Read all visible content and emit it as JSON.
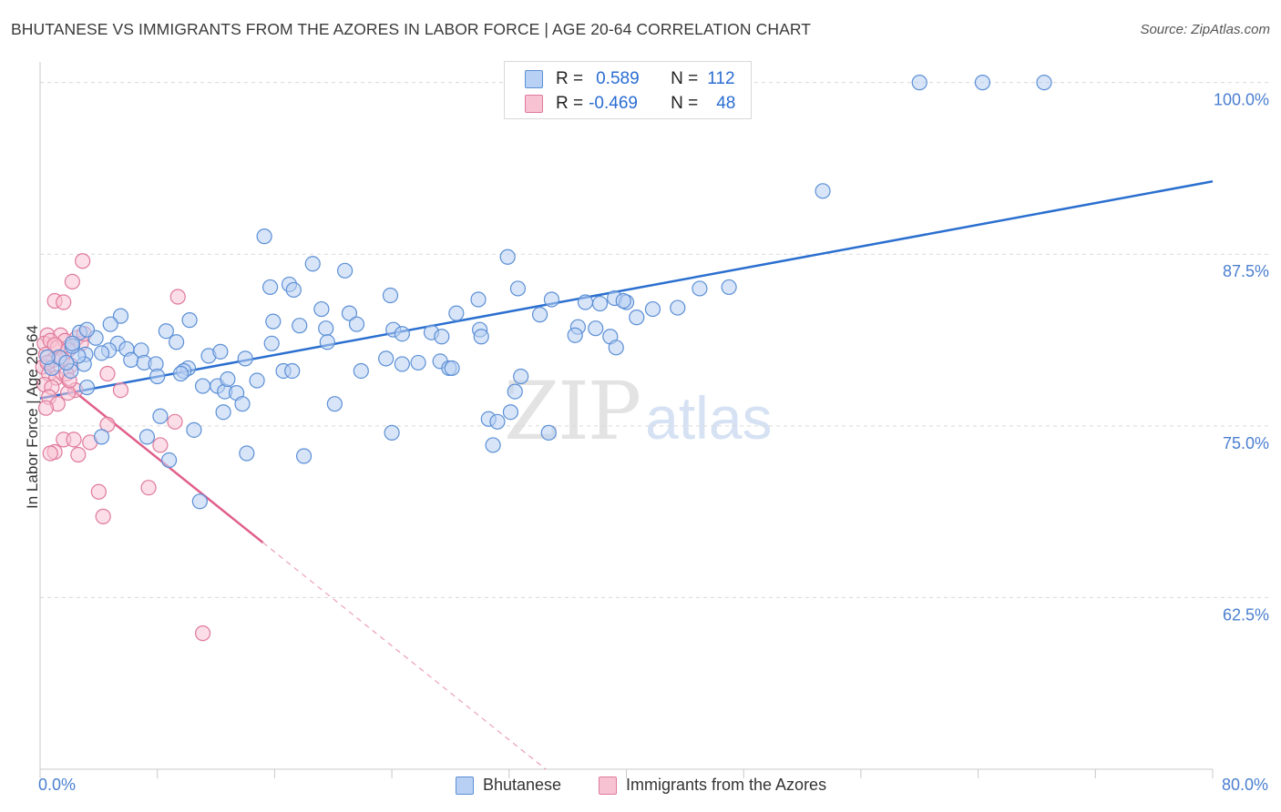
{
  "header": {
    "title": "BHUTANESE VS IMMIGRANTS FROM THE AZORES IN LABOR FORCE | AGE 20-64 CORRELATION CHART",
    "source": "Source: ZipAtlas.com"
  },
  "stats": {
    "series_a": {
      "r_label": "R =",
      "r_value": "0.589",
      "n_label": "N =",
      "n_value": "112"
    },
    "series_b": {
      "r_label": "R =",
      "r_value": "-0.469",
      "n_label": "N =",
      "n_value": "48"
    }
  },
  "watermark": {
    "zip": "ZIP",
    "atlas": "atlas"
  },
  "colors": {
    "blue_fill": "#b8d0f3",
    "blue_stroke": "#5b8fd6",
    "blue_line": "#2a6fcf",
    "pink_fill": "#f7c3d3",
    "pink_stroke": "#e0799b",
    "pink_line": "#e0608a",
    "grid": "#d9d9d9",
    "tick_label": "#4a7fd0"
  },
  "chart_data": {
    "type": "scatter",
    "title": "BHUTANESE VS IMMIGRANTS FROM THE AZORES IN LABOR FORCE | AGE 20-64 CORRELATION CHART",
    "xlabel": "",
    "ylabel": "In Labor Force | Age 20-64",
    "xlim": [
      0,
      80
    ],
    "ylim": [
      50,
      101.5
    ],
    "x_tick_labels": {
      "min": "0.0%",
      "max": "80.0%"
    },
    "y_ticks": [
      {
        "value": 100,
        "label": "100.0%"
      },
      {
        "value": 87.5,
        "label": "87.5%"
      },
      {
        "value": 75,
        "label": "75.0%"
      },
      {
        "value": 62.5,
        "label": "62.5%"
      }
    ],
    "grid": true,
    "legend_position": "bottom-center",
    "series": [
      {
        "name": "Bhutanese",
        "color": "blue",
        "trend": {
          "x": [
            0,
            80
          ],
          "y": [
            77.0,
            92.8
          ],
          "dashed_from": null
        },
        "points": [
          [
            60,
            100
          ],
          [
            64.3,
            100
          ],
          [
            68.5,
            100
          ],
          [
            53.4,
            92.1
          ],
          [
            15.3,
            88.8
          ],
          [
            18.6,
            86.8
          ],
          [
            20.8,
            86.3
          ],
          [
            31.9,
            87.3
          ],
          [
            15.7,
            85.1
          ],
          [
            17.0,
            85.3
          ],
          [
            17.3,
            84.9
          ],
          [
            23.9,
            84.5
          ],
          [
            29.9,
            84.2
          ],
          [
            32.6,
            85.0
          ],
          [
            34.9,
            84.2
          ],
          [
            37.2,
            84.0
          ],
          [
            38.2,
            83.9
          ],
          [
            39.2,
            84.3
          ],
          [
            40.0,
            84.0
          ],
          [
            39.8,
            84.1
          ],
          [
            45.0,
            85.0
          ],
          [
            47.0,
            85.1
          ],
          [
            41.8,
            83.5
          ],
          [
            43.5,
            83.6
          ],
          [
            40.7,
            82.9
          ],
          [
            34.1,
            83.1
          ],
          [
            28.4,
            83.2
          ],
          [
            19.2,
            83.5
          ],
          [
            5.5,
            83.0
          ],
          [
            4.8,
            82.4
          ],
          [
            10.2,
            82.7
          ],
          [
            8.6,
            81.9
          ],
          [
            15.9,
            82.6
          ],
          [
            17.7,
            82.3
          ],
          [
            19.5,
            82.1
          ],
          [
            21.1,
            83.2
          ],
          [
            21.6,
            82.4
          ],
          [
            24.1,
            82.0
          ],
          [
            24.7,
            81.7
          ],
          [
            26.7,
            81.8
          ],
          [
            27.4,
            81.5
          ],
          [
            30.0,
            82.0
          ],
          [
            36.7,
            82.2
          ],
          [
            37.9,
            82.1
          ],
          [
            38.9,
            81.5
          ],
          [
            39.3,
            80.7
          ],
          [
            19.6,
            81.1
          ],
          [
            15.8,
            81.0
          ],
          [
            9.3,
            81.1
          ],
          [
            11.5,
            80.1
          ],
          [
            12.3,
            80.4
          ],
          [
            14.0,
            79.9
          ],
          [
            10.1,
            79.2
          ],
          [
            16.6,
            79.0
          ],
          [
            21.9,
            79.0
          ],
          [
            23.6,
            79.9
          ],
          [
            27.3,
            79.7
          ],
          [
            27.9,
            79.2
          ],
          [
            5.3,
            81.0
          ],
          [
            5.9,
            80.6
          ],
          [
            4.7,
            80.5
          ],
          [
            4.2,
            80.3
          ],
          [
            3.1,
            80.2
          ],
          [
            6.9,
            80.5
          ],
          [
            6.2,
            79.8
          ],
          [
            7.1,
            79.6
          ],
          [
            7.9,
            79.5
          ],
          [
            8.0,
            78.6
          ],
          [
            9.8,
            79.0
          ],
          [
            9.6,
            78.8
          ],
          [
            11.1,
            77.9
          ],
          [
            12.1,
            77.9
          ],
          [
            12.6,
            77.5
          ],
          [
            13.4,
            77.4
          ],
          [
            12.8,
            78.4
          ],
          [
            14.8,
            78.3
          ],
          [
            17.2,
            79.0
          ],
          [
            13.8,
            76.6
          ],
          [
            12.5,
            76.0
          ],
          [
            8.2,
            75.7
          ],
          [
            10.5,
            74.7
          ],
          [
            7.3,
            74.2
          ],
          [
            4.2,
            74.2
          ],
          [
            8.8,
            72.5
          ],
          [
            14.1,
            73.0
          ],
          [
            18.0,
            72.8
          ],
          [
            10.9,
            69.5
          ],
          [
            3.2,
            77.8
          ],
          [
            2.1,
            79.0
          ],
          [
            3.0,
            79.5
          ],
          [
            2.6,
            80.1
          ],
          [
            0.8,
            79.2
          ],
          [
            1.3,
            80.0
          ],
          [
            2.2,
            80.8
          ],
          [
            3.8,
            81.4
          ],
          [
            2.7,
            81.8
          ],
          [
            3.2,
            82.0
          ],
          [
            2.2,
            81.0
          ],
          [
            20.1,
            76.6
          ],
          [
            24.0,
            74.5
          ],
          [
            28.1,
            79.2
          ],
          [
            30.6,
            75.5
          ],
          [
            32.4,
            77.5
          ],
          [
            32.8,
            78.6
          ],
          [
            32.1,
            76.0
          ],
          [
            31.2,
            75.3
          ],
          [
            30.9,
            73.6
          ],
          [
            34.7,
            74.5
          ],
          [
            25.8,
            79.6
          ],
          [
            24.7,
            79.5
          ],
          [
            30.1,
            81.5
          ],
          [
            36.5,
            81.6
          ],
          [
            0.5,
            80.0
          ],
          [
            1.8,
            79.6
          ]
        ]
      },
      {
        "name": "Immigrants from the Azores",
        "color": "pink",
        "trend": {
          "x": [
            0,
            34.5
          ],
          "y": [
            79.5,
            50.0
          ],
          "dashed_from": 15.2
        },
        "points": [
          [
            2.9,
            87.0
          ],
          [
            2.2,
            85.5
          ],
          [
            1.0,
            84.1
          ],
          [
            1.6,
            84.0
          ],
          [
            9.4,
            84.4
          ],
          [
            0.5,
            81.6
          ],
          [
            1.4,
            81.6
          ],
          [
            0.3,
            81.0
          ],
          [
            0.7,
            81.2
          ],
          [
            1.7,
            81.2
          ],
          [
            2.5,
            81.4
          ],
          [
            2.8,
            81.0
          ],
          [
            3.0,
            81.7
          ],
          [
            1.2,
            80.7
          ],
          [
            1.9,
            80.5
          ],
          [
            0.4,
            80.2
          ],
          [
            0.9,
            79.8
          ],
          [
            1.5,
            79.9
          ],
          [
            2.1,
            79.4
          ],
          [
            0.2,
            79.3
          ],
          [
            0.6,
            78.8
          ],
          [
            1.1,
            78.5
          ],
          [
            1.8,
            78.8
          ],
          [
            0.3,
            78.0
          ],
          [
            0.8,
            77.8
          ],
          [
            2.4,
            77.6
          ],
          [
            0.6,
            77.1
          ],
          [
            1.2,
            76.6
          ],
          [
            1.9,
            77.4
          ],
          [
            0.4,
            76.3
          ],
          [
            4.6,
            78.8
          ],
          [
            5.5,
            77.6
          ],
          [
            4.6,
            75.1
          ],
          [
            9.2,
            75.3
          ],
          [
            1.6,
            74.0
          ],
          [
            2.3,
            74.0
          ],
          [
            3.4,
            73.8
          ],
          [
            1.0,
            73.1
          ],
          [
            0.7,
            73.0
          ],
          [
            2.6,
            72.9
          ],
          [
            8.2,
            73.6
          ],
          [
            4.0,
            70.2
          ],
          [
            7.4,
            70.5
          ],
          [
            4.3,
            68.4
          ],
          [
            11.1,
            59.9
          ],
          [
            1.0,
            80.9
          ],
          [
            0.5,
            79.6
          ],
          [
            2.0,
            78.3
          ]
        ]
      }
    ]
  },
  "legend": {
    "items": [
      {
        "label": "Bhutanese"
      },
      {
        "label": "Immigrants from the Azores"
      }
    ]
  }
}
